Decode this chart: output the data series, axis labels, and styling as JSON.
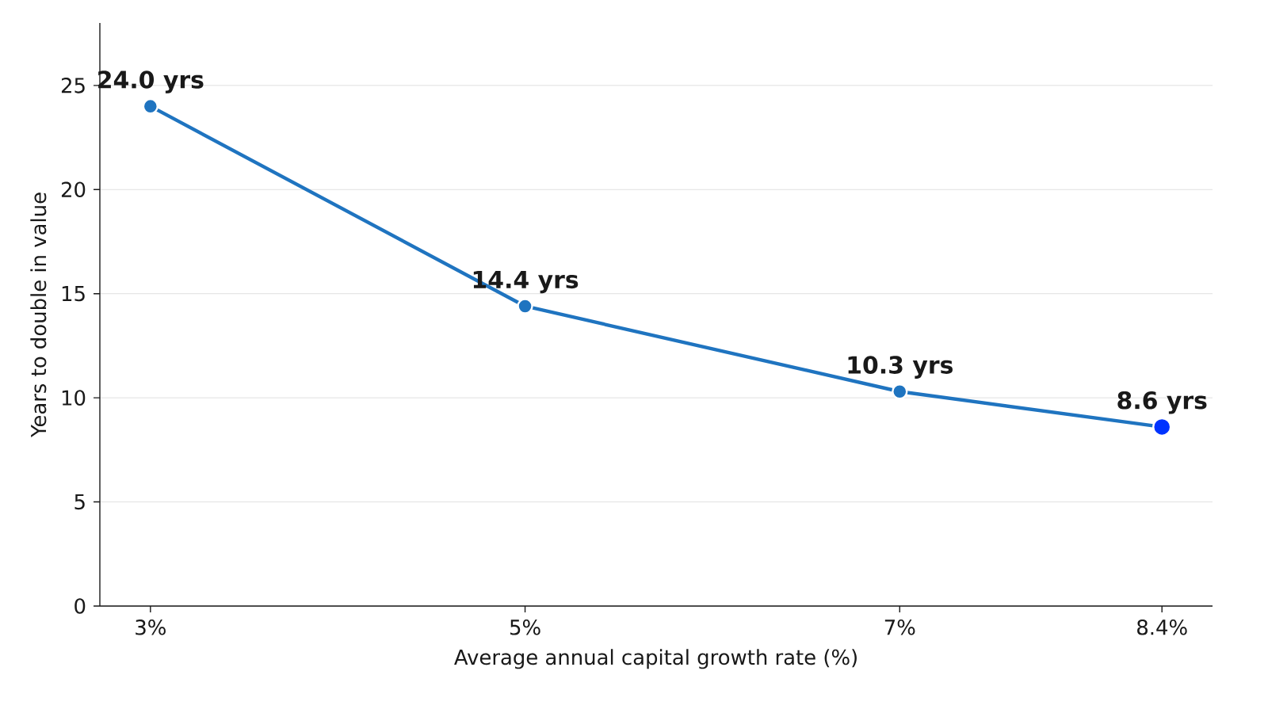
{
  "chart_data": {
    "type": "line",
    "xlabel": "Average annual capital growth rate (%)",
    "ylabel": "Years to double in value",
    "x": [
      3,
      5,
      7,
      8.4
    ],
    "series": [
      {
        "color": "#1f74c0",
        "colors": [
          "#1f74c0",
          "#1f74c0",
          "#1f74c0",
          "#0033ff"
        ],
        "values": [
          24.0,
          14.4,
          10.3,
          8.6
        ],
        "value_labels": [
          "24.0 yrs",
          "14.4 yrs",
          "10.3 yrs",
          "8.6 yrs"
        ]
      }
    ],
    "xlim": [
      2.73,
      8.67
    ],
    "ylim": [
      0,
      28
    ],
    "xticks": [
      {
        "value": 3,
        "label": "3%"
      },
      {
        "value": 5,
        "label": "5%"
      },
      {
        "value": 7,
        "label": "7%"
      },
      {
        "value": 8.4,
        "label": "8.4%"
      }
    ],
    "yticks": [
      0,
      5,
      10,
      15,
      20,
      25
    ],
    "grid": "y",
    "marker": "circle",
    "line_style": "solid"
  }
}
